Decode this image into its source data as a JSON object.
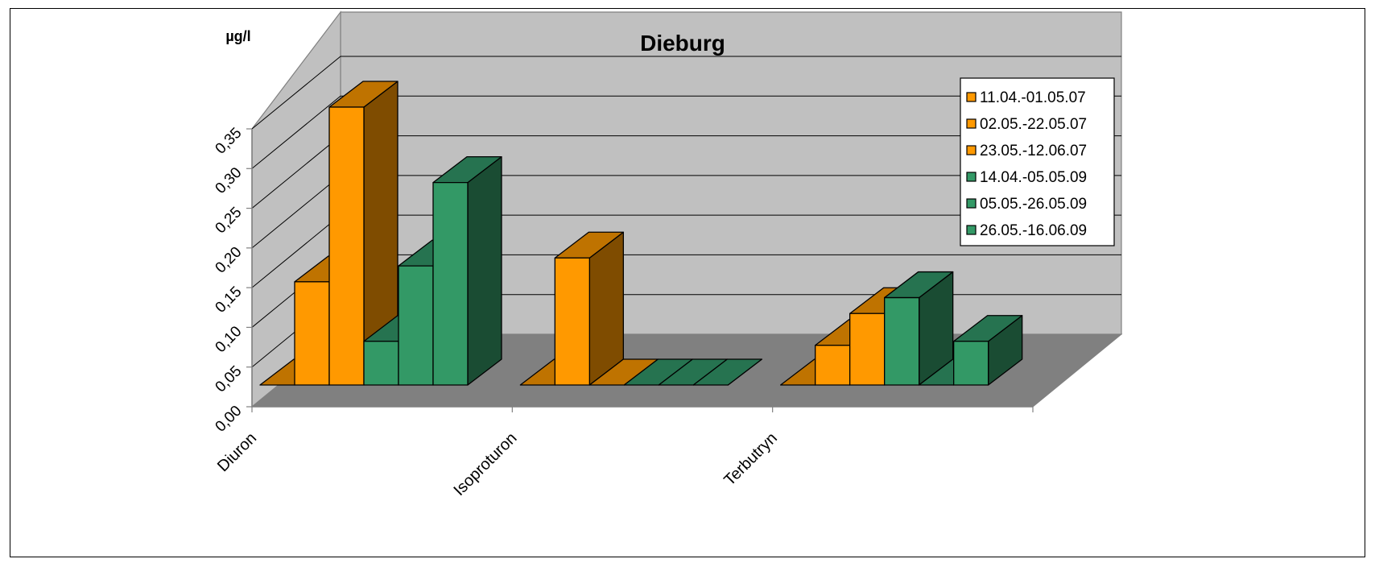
{
  "chart_data": {
    "type": "bar",
    "title": "Dieburg",
    "ylabel": "µg/l",
    "xlabel": "",
    "ylim": [
      0,
      0.35
    ],
    "yticks": [
      "0,00",
      "0,05",
      "0,10",
      "0,15",
      "0,20",
      "0,25",
      "0,30",
      "0,35"
    ],
    "ytick_values": [
      0,
      0.05,
      0.1,
      0.15,
      0.2,
      0.25,
      0.3,
      0.35
    ],
    "categories": [
      "Diuron",
      "Isoproturon",
      "Terbutryn"
    ],
    "series": [
      {
        "name": "11.04.-01.05.07",
        "values": [
          0,
          0,
          0
        ]
      },
      {
        "name": "02.05.-22.05.07",
        "values": [
          0.13,
          0.16,
          0.05
        ]
      },
      {
        "name": "23.05.-12.06.07",
        "values": [
          0.35,
          0,
          0.09
        ]
      },
      {
        "name": "14.04.-05.05.09",
        "values": [
          0.055,
          0,
          0.11
        ]
      },
      {
        "name": "05.05.-26.05.09",
        "values": [
          0.15,
          0,
          0
        ]
      },
      {
        "name": "26.05.-16.06.09",
        "values": [
          0.255,
          0,
          0.055
        ]
      }
    ],
    "series_colors": [
      "#FF9900",
      "#FF9900",
      "#FF9900",
      "#339966",
      "#339966",
      "#339966"
    ],
    "series_side_colors": [
      "#7F4C00",
      "#7F4C00",
      "#7F4C00",
      "#1A4C33",
      "#1A4C33",
      "#1A4C33"
    ],
    "series_top_colors": [
      "#BF7300",
      "#BF7300",
      "#BF7300",
      "#267350",
      "#267350",
      "#267350"
    ],
    "wall_color": "#C0C0C0",
    "floor_color": "#808080",
    "gridlines": true,
    "legend_position": "top-right",
    "projection": "3d-column"
  }
}
